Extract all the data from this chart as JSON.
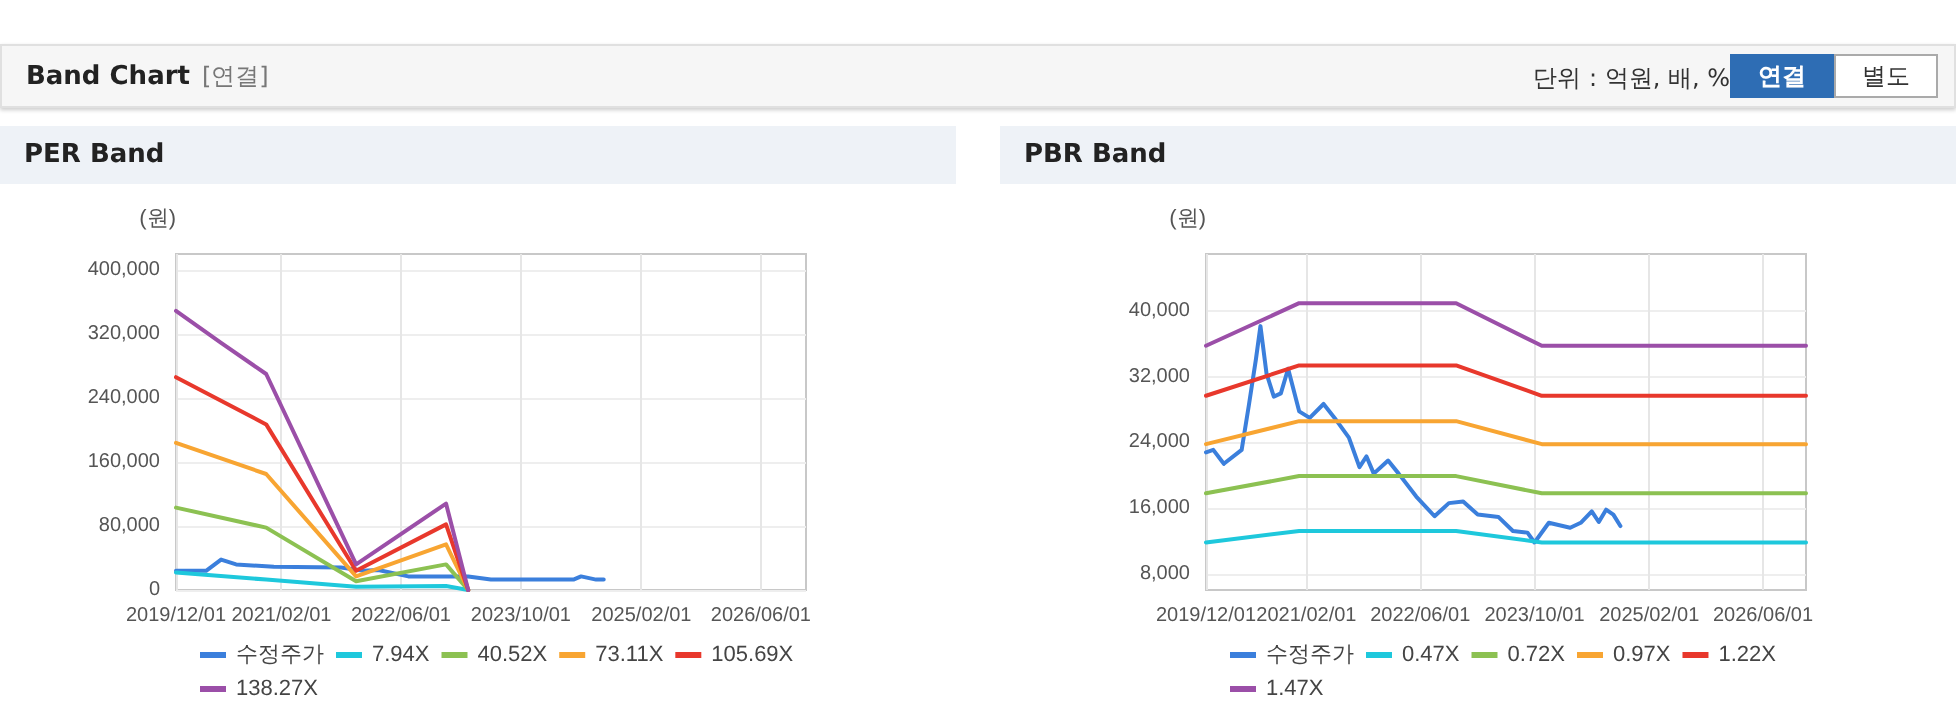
{
  "chart_data": [
    {
      "type": "other",
      "title": "Band Chart",
      "annotations": [
        "[연결]",
        "단위 : 억원, 배, %",
        "연결",
        "별도"
      ]
    },
    {
      "type": "line",
      "title": "PER Band",
      "ylabel": "(원)",
      "grid": true,
      "legend": "bottom",
      "marker": "none",
      "line_style": "solid",
      "xlim": [
        "2019-12-01",
        "2026-12-01"
      ],
      "xticks": [
        {
          "value": "2019-12-01",
          "label": "2019/12/01"
        },
        {
          "value": "2021-02-01",
          "label": "2021/02/01"
        },
        {
          "value": "2022-06-01",
          "label": "2022/06/01"
        },
        {
          "value": "2023-10-01",
          "label": "2023/10/01"
        },
        {
          "value": "2025-02-01",
          "label": "2025/02/01"
        },
        {
          "value": "2026-06-01",
          "label": "2026/06/01"
        }
      ],
      "ylim": [
        0,
        420000
      ],
      "yticks": [
        0,
        {
          "value": 80000,
          "label": "80,000"
        },
        {
          "value": 160000,
          "label": "160,000"
        },
        {
          "value": 240000,
          "label": "240,000"
        },
        {
          "value": 320000,
          "label": "320,000"
        },
        {
          "value": 400000,
          "label": "400,000"
        }
      ],
      "series": [
        {
          "name": "수정주가",
          "color": "#3b7fdc",
          "x": [
            "2019-12-01",
            "2020-04-01",
            "2020-06-01",
            "2020-08-01",
            "2021-01-01",
            "2021-10-01",
            "2022-01-01",
            "2022-03-01",
            "2022-07-01",
            "2023-03-01",
            "2023-06-01",
            "2024-05-01",
            "2024-06-01",
            "2024-08-01",
            "2024-09-01"
          ],
          "values": [
            24000,
            24000,
            38000,
            32000,
            29000,
            28000,
            24000,
            25000,
            17000,
            17000,
            13000,
            13000,
            17000,
            13000,
            13000
          ]
        },
        {
          "name": "7.94X",
          "color": "#1ec8dc",
          "x": [
            "2019-12-01",
            "2020-12-01",
            "2021-12-01",
            "2022-12-01",
            "2023-03-01"
          ],
          "values": [
            22000,
            13000,
            4000,
            5000,
            0
          ]
        },
        {
          "name": "40.52X",
          "color": "#8cc152",
          "x": [
            "2019-12-01",
            "2020-12-01",
            "2021-12-01",
            "2022-12-01",
            "2023-03-01"
          ],
          "values": [
            103000,
            78000,
            11000,
            32000,
            0
          ]
        },
        {
          "name": "73.11X",
          "color": "#f8a532",
          "x": [
            "2019-12-01",
            "2020-12-01",
            "2021-12-01",
            "2022-12-01",
            "2023-03-01"
          ],
          "values": [
            184000,
            145000,
            17000,
            57000,
            0
          ]
        },
        {
          "name": "105.69X",
          "color": "#e8382c",
          "x": [
            "2019-12-01",
            "2020-12-01",
            "2021-12-01",
            "2022-12-01",
            "2023-03-01"
          ],
          "values": [
            266000,
            207000,
            24000,
            82000,
            0
          ]
        },
        {
          "name": "138.27X",
          "color": "#9b4fa8",
          "x": [
            "2019-12-01",
            "2020-06-01",
            "2020-12-01",
            "2021-12-01",
            "2022-12-01",
            "2023-03-01"
          ],
          "values": [
            349000,
            309000,
            270000,
            32000,
            108000,
            0
          ]
        }
      ]
    },
    {
      "type": "line",
      "title": "PBR Band",
      "ylabel": "(원)",
      "grid": true,
      "legend": "bottom",
      "marker": "none",
      "line_style": "solid",
      "xlim": [
        "2019-12-01",
        "2026-12-01"
      ],
      "xticks": [
        {
          "value": "2019-12-01",
          "label": "2019/12/01"
        },
        {
          "value": "2021-02-01",
          "label": "2021/02/01"
        },
        {
          "value": "2022-06-01",
          "label": "2022/06/01"
        },
        {
          "value": "2023-10-01",
          "label": "2023/10/01"
        },
        {
          "value": "2025-02-01",
          "label": "2025/02/01"
        },
        {
          "value": "2026-06-01",
          "label": "2026/06/01"
        }
      ],
      "ylim": [
        6000,
        47000
      ],
      "yticks": [
        {
          "value": 8000,
          "label": "8,000"
        },
        {
          "value": 16000,
          "label": "16,000"
        },
        {
          "value": 24000,
          "label": "24,000"
        },
        {
          "value": 32000,
          "label": "32,000"
        },
        {
          "value": 40000,
          "label": "40,000"
        }
      ],
      "series": [
        {
          "name": "수정주가",
          "color": "#3b7fdc",
          "x": [
            "2019-12-01",
            "2020-01-01",
            "2020-02-15",
            "2020-05-01",
            "2020-06-01",
            "2020-07-01",
            "2020-07-20",
            "2020-08-15",
            "2020-09-15",
            "2020-10-15",
            "2020-11-15",
            "2021-01-01",
            "2021-02-15",
            "2021-04-15",
            "2021-06-01",
            "2021-08-01",
            "2021-09-15",
            "2021-10-15",
            "2021-11-15",
            "2022-01-15",
            "2022-03-01",
            "2022-05-15",
            "2022-08-01",
            "2022-10-01",
            "2022-12-01",
            "2023-02-01",
            "2023-05-01",
            "2023-07-01",
            "2023-09-01",
            "2023-10-01",
            "2023-12-01",
            "2024-03-01",
            "2024-04-15",
            "2024-06-01",
            "2024-07-01",
            "2024-08-01",
            "2024-09-01",
            "2024-10-01"
          ],
          "values": [
            22800,
            23100,
            21400,
            23100,
            28600,
            34200,
            38200,
            32400,
            29600,
            30000,
            33000,
            27800,
            27000,
            28700,
            27000,
            24600,
            21000,
            22300,
            20200,
            21800,
            20200,
            17400,
            15000,
            16600,
            16800,
            15200,
            14900,
            13200,
            13000,
            11800,
            14200,
            13600,
            14200,
            15600,
            14300,
            15800,
            15200,
            13800
          ]
        },
        {
          "name": "0.47X",
          "color": "#1ec8dc",
          "x": [
            "2019-12-01",
            "2021-01-01",
            "2022-11-01",
            "2023-11-01",
            "2026-12-01"
          ],
          "values": [
            11800,
            13200,
            13200,
            11800,
            11800
          ]
        },
        {
          "name": "0.72X",
          "color": "#8cc152",
          "x": [
            "2019-12-01",
            "2021-01-01",
            "2022-11-01",
            "2023-11-01",
            "2026-12-01"
          ],
          "values": [
            17800,
            19900,
            19900,
            17800,
            17800
          ]
        },
        {
          "name": "0.97X",
          "color": "#f8a532",
          "x": [
            "2019-12-01",
            "2021-01-01",
            "2022-11-01",
            "2023-11-01",
            "2026-12-01"
          ],
          "values": [
            23800,
            26600,
            26600,
            23800,
            23800
          ]
        },
        {
          "name": "1.22X",
          "color": "#e8382c",
          "x": [
            "2019-12-01",
            "2021-01-01",
            "2022-11-01",
            "2023-11-01",
            "2026-12-01"
          ],
          "values": [
            29700,
            33400,
            33400,
            29700,
            29700
          ]
        },
        {
          "name": "1.47X",
          "color": "#9b4fa8",
          "x": [
            "2019-12-01",
            "2021-01-01",
            "2022-11-01",
            "2023-11-01",
            "2026-12-01"
          ],
          "values": [
            35800,
            41000,
            41000,
            35800,
            35800
          ]
        }
      ]
    }
  ]
}
